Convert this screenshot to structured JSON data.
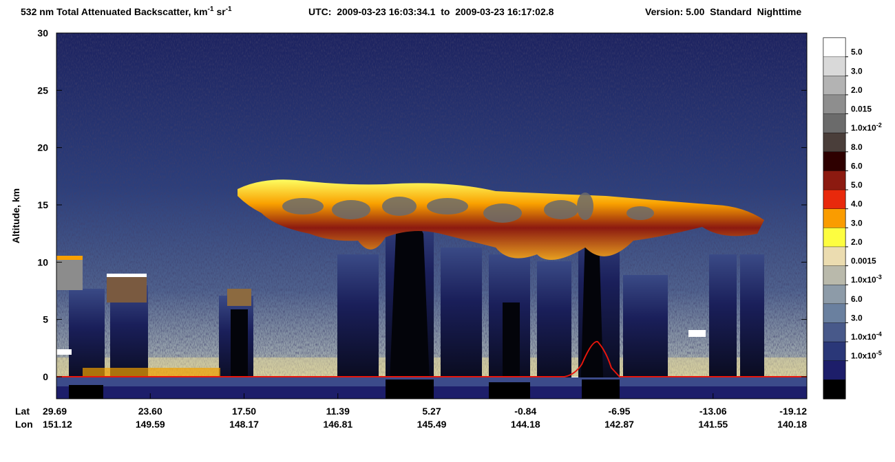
{
  "chart_data": {
    "type": "heatmap",
    "title_parts": [
      "532 nm Total Attenuated Backscatter, km",
      "-1",
      "sr",
      "-1"
    ],
    "utc": "UTC:  2009-03-23 16:03:34.1  to  2009-03-23 16:17:02.8",
    "version": "Version: 5.00  Standard  Nighttime",
    "y_label": "Altitude, km",
    "ylim": [
      -1.92,
      30
    ],
    "yticks": [
      0,
      5,
      10,
      15,
      20,
      25,
      30
    ],
    "x_row_labels": [
      "Lat",
      "Lon"
    ],
    "lat": [
      29.69,
      {
        "value": 23.6,
        "label": "23.60"
      },
      {
        "value": 17.5,
        "label": "17.50"
      },
      11.39,
      5.27,
      -0.84,
      -6.95,
      -13.06,
      -19.12
    ],
    "lon": [
      151.12,
      149.59,
      148.17,
      146.81,
      145.49,
      144.18,
      142.87,
      141.55,
      140.18
    ],
    "colorbar": {
      "colors": [
        "#ffffff",
        "#d9d9d9",
        "#b3b3b3",
        "#8e8e8e",
        "#6b6b6b",
        "#4a3e3a",
        "#2e0000",
        "#8c1a10",
        "#e8290c",
        "#fa9c00",
        "#fdfd40",
        "#ebdcb0",
        "#b9b9ab",
        "#8d9ba8",
        "#6a809f",
        "#48598a",
        "#2a3778",
        "#1d1e6a",
        "#000000"
      ],
      "ticks": [
        {
          "value": 0.05,
          "label": "5.0"
        },
        {
          "value": 0.03,
          "label": "3.0"
        },
        {
          "value": 0.02,
          "label": "2.0"
        },
        0.015,
        {
          "value": 0.01,
          "label": "1.0x10",
          "exp": "-2"
        },
        {
          "value": 0.008,
          "label": "8.0"
        },
        {
          "value": 0.006,
          "label": "6.0"
        },
        {
          "value": 0.005,
          "label": "5.0"
        },
        {
          "value": 0.004,
          "label": "4.0"
        },
        {
          "value": 0.003,
          "label": "3.0"
        },
        {
          "value": 0.002,
          "label": "2.0"
        },
        0.0015,
        {
          "value": 0.001,
          "label": "1.0x10",
          "exp": "-3"
        },
        {
          "value": 0.0006,
          "label": "6.0"
        },
        {
          "value": 0.0003,
          "label": "3.0"
        },
        {
          "value": 0.0001,
          "label": "1.0x10",
          "exp": "-4"
        },
        {
          "value": 1e-05,
          "label": "1.0x10",
          "exp": "-5"
        }
      ]
    }
  }
}
